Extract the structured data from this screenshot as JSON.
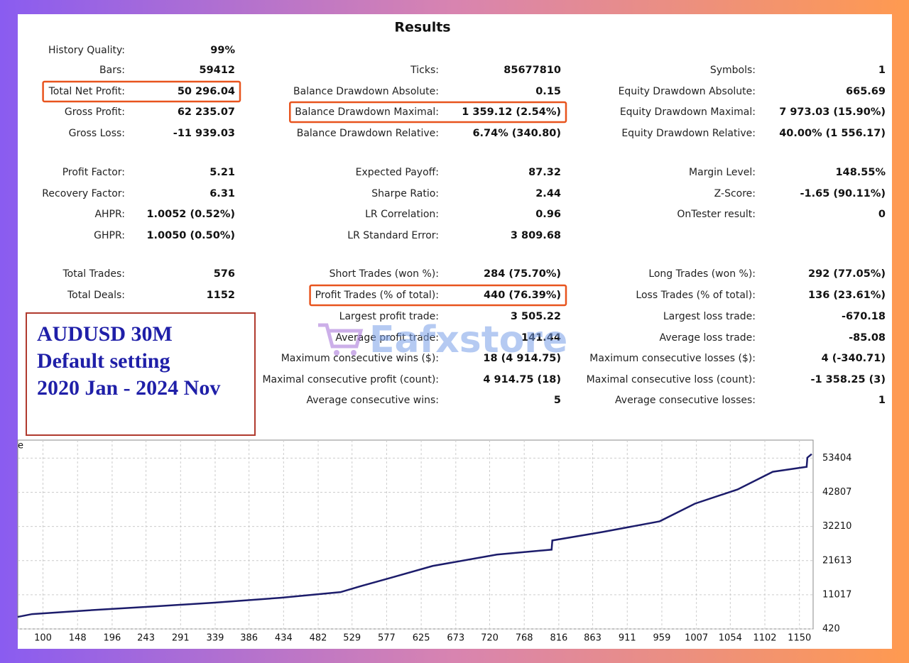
{
  "title": "Results",
  "rows": [
    [
      {
        "label": "History Quality:",
        "value": "99%"
      },
      null,
      null
    ],
    [
      {
        "label": "Bars:",
        "value": "59412"
      },
      {
        "label": "Ticks:",
        "value": "85677810"
      },
      {
        "label": "Symbols:",
        "value": "1"
      }
    ],
    [
      {
        "label": "Total Net Profit:",
        "value": "50 296.04",
        "highlight": true
      },
      {
        "label": "Balance Drawdown Absolute:",
        "value": "0.15"
      },
      {
        "label": "Equity Drawdown Absolute:",
        "value": "665.69"
      }
    ],
    [
      {
        "label": "Gross Profit:",
        "value": "62 235.07"
      },
      {
        "label": "Balance Drawdown Maximal:",
        "value": "1 359.12 (2.54%)",
        "highlight": true
      },
      {
        "label": "Equity Drawdown Maximal:",
        "value": "7 973.03 (15.90%)"
      }
    ],
    [
      {
        "label": "Gross Loss:",
        "value": "-11 939.03"
      },
      {
        "label": "Balance Drawdown Relative:",
        "value": "6.74% (340.80)"
      },
      {
        "label": "Equity Drawdown Relative:",
        "value": "40.00% (1 556.17)"
      }
    ],
    [
      {
        "label": "Profit Factor:",
        "value": "5.21"
      },
      {
        "label": "Expected Payoff:",
        "value": "87.32"
      },
      {
        "label": "Margin Level:",
        "value": "148.55%"
      }
    ],
    [
      {
        "label": "Recovery Factor:",
        "value": "6.31"
      },
      {
        "label": "Sharpe Ratio:",
        "value": "2.44"
      },
      {
        "label": "Z-Score:",
        "value": "-1.65 (90.11%)"
      }
    ],
    [
      {
        "label": "AHPR:",
        "value": "1.0052 (0.52%)"
      },
      {
        "label": "LR Correlation:",
        "value": "0.96"
      },
      {
        "label": "OnTester result:",
        "value": "0"
      }
    ],
    [
      {
        "label": "GHPR:",
        "value": "1.0050 (0.50%)"
      },
      {
        "label": "LR Standard Error:",
        "value": "3 809.68"
      },
      null
    ],
    [
      {
        "label": "Total Trades:",
        "value": "576"
      },
      {
        "label": "Short Trades (won %):",
        "value": "284 (75.70%)"
      },
      {
        "label": "Long Trades (won %):",
        "value": "292 (77.05%)"
      }
    ],
    [
      {
        "label": "Total Deals:",
        "value": "1152"
      },
      {
        "label": "Profit Trades (% of total):",
        "value": "440 (76.39%)",
        "highlight": true
      },
      {
        "label": "Loss Trades (% of total):",
        "value": "136 (23.61%)"
      }
    ],
    [
      null,
      {
        "label": "Largest profit trade:",
        "value": "3 505.22"
      },
      {
        "label": "Largest loss trade:",
        "value": "-670.18"
      }
    ],
    [
      null,
      {
        "label": "Average profit trade:",
        "value": "141.44"
      },
      {
        "label": "Average loss trade:",
        "value": "-85.08"
      }
    ],
    [
      null,
      {
        "label": "Maximum consecutive wins ($):",
        "value": "18 (4 914.75)"
      },
      {
        "label": "Maximum consecutive losses ($):",
        "value": "4 (-340.71)"
      }
    ],
    [
      null,
      {
        "label": "Maximal consecutive profit (count):",
        "value": "4 914.75 (18)"
      },
      {
        "label": "Maximal consecutive loss (count):",
        "value": "-1 358.25 (3)"
      }
    ],
    [
      null,
      {
        "label": "Average consecutive wins:",
        "value": "5"
      },
      {
        "label": "Average consecutive losses:",
        "value": "1"
      }
    ]
  ],
  "note": [
    "AUDUSD 30M",
    "Default setting",
    "2020 Jan - 2024 Nov"
  ],
  "watermark": "Eafxstore",
  "chart_data": {
    "type": "line",
    "ylabel": "e",
    "x": [
      65,
      85,
      159,
      257,
      336,
      430,
      513,
      543,
      582,
      641,
      730,
      806,
      807,
      877,
      956,
      1005,
      1064,
      1113,
      1160,
      1161,
      1167
    ],
    "series": [
      {
        "color": "#1c1c6b",
        "values": [
          4150,
          5030,
          6130,
          7450,
          8550,
          10080,
          11840,
          13810,
          16230,
          19960,
          23480,
          25020,
          27870,
          30500,
          33800,
          39290,
          43680,
          49170,
          50710,
          53560,
          54660
        ]
      }
    ],
    "xlim": [
      65,
      1169
    ],
    "ylim": [
      420,
      59000
    ],
    "xticks": [
      100,
      148,
      196,
      243,
      291,
      339,
      386,
      434,
      482,
      529,
      577,
      625,
      673,
      720,
      768,
      816,
      863,
      911,
      959,
      1007,
      1054,
      1102,
      1150
    ],
    "yticks": [
      420,
      11017,
      21613,
      32210,
      42807,
      53404
    ],
    "grid": true
  }
}
